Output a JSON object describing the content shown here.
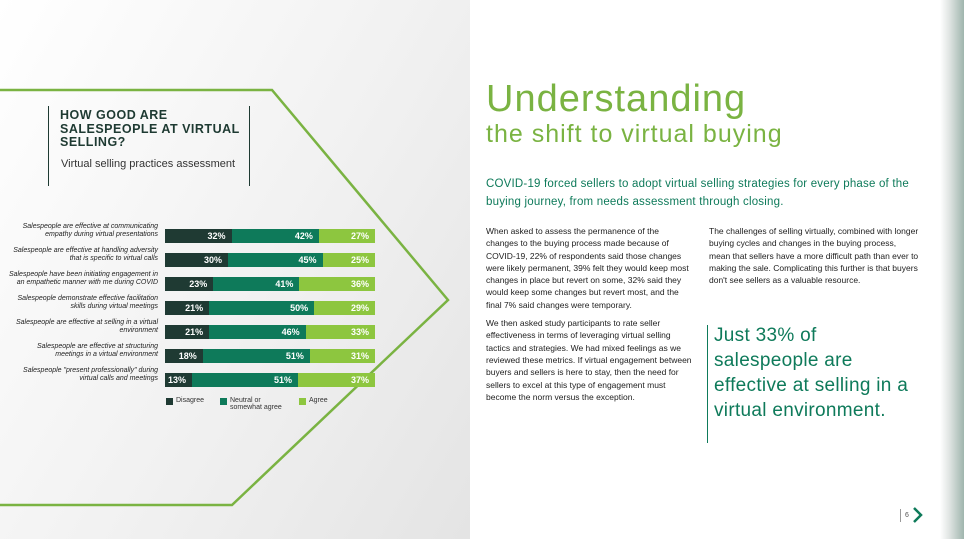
{
  "panel": {
    "title": "HOW GOOD ARE SALESPEOPLE AT VIRTUAL SELLING?",
    "subtitle": "Virtual selling practices assessment"
  },
  "chart_data": {
    "type": "bar",
    "stacked": true,
    "orientation": "horizontal",
    "categories": [
      "Salespeople are effective at communicating empathy during virtual presentations",
      "Salespeople are effective at handling adversity that is specific to virtual calls",
      "Salespeople have been initiating engagement in an empathetic manner with me during COVID",
      "Salespeople demonstrate effective facilitation skills during virtual meetings",
      "Salespeople are effective at selling in a virtual environment",
      "Salespeople are effective at structuring meetings in a virtual environment",
      "Salespeople \"present professionally\" during virtual calls and meetings"
    ],
    "series": [
      {
        "name": "Disagree",
        "values": [
          32,
          30,
          23,
          21,
          21,
          18,
          13
        ],
        "labels": [
          "32%",
          "30%",
          "23%",
          "21%",
          "21%",
          "18%",
          "13%"
        ],
        "color": "#1f3a33"
      },
      {
        "name": "Neutral or somewhat agree",
        "values": [
          42,
          45,
          41,
          50,
          46,
          51,
          51
        ],
        "labels": [
          "42%",
          "45%",
          "41%",
          "50%",
          "46%",
          "51%",
          "51%"
        ],
        "color": "#0e7a5a"
      },
      {
        "name": "Agree",
        "values": [
          27,
          25,
          36,
          29,
          33,
          31,
          37
        ],
        "labels": [
          "27%",
          "25%",
          "36%",
          "29%",
          "33%",
          "31%",
          "37%"
        ],
        "color": "#8dc63f"
      }
    ],
    "xlim": [
      0,
      100
    ],
    "legend": "bottom"
  },
  "heading": {
    "line1": "Understanding",
    "line2": "the shift to virtual buying"
  },
  "intro": "COVID-19 forced sellers to adopt virtual selling strategies for every phase of the buying journey, from needs assessment through closing.",
  "col1": {
    "p1": "When asked to assess the permanence of the changes to the buying process made because of COVID-19, 22% of respondents said those changes were likely permanent, 39% felt they would keep most changes in place but revert on some, 32% said they would keep some changes but revert most, and the final 7% said changes were temporary.",
    "p2": "We then asked study participants to rate seller effectiveness in terms of leveraging virtual selling tactics and strategies. We had mixed feelings as we reviewed these metrics. If virtual engagement between buyers and sellers is here to stay, then the need for sellers to excel at this type of engagement must become the norm versus the exception."
  },
  "col2": {
    "p1": "The challenges of selling virtually, combined with longer buying cycles and changes in the buying process, mean that sellers have a more difficult path than ever to making the sale. Complicating this further is that buyers don't see sellers as a valuable resource."
  },
  "quote": "Just 33% of salespeople are effective at selling in a virtual environment.",
  "page_number": "6",
  "colors": {
    "green_light": "#7ab342",
    "green_dark": "#0e7a5a",
    "navy": "#1f3a33",
    "frame": "#7ab342"
  }
}
